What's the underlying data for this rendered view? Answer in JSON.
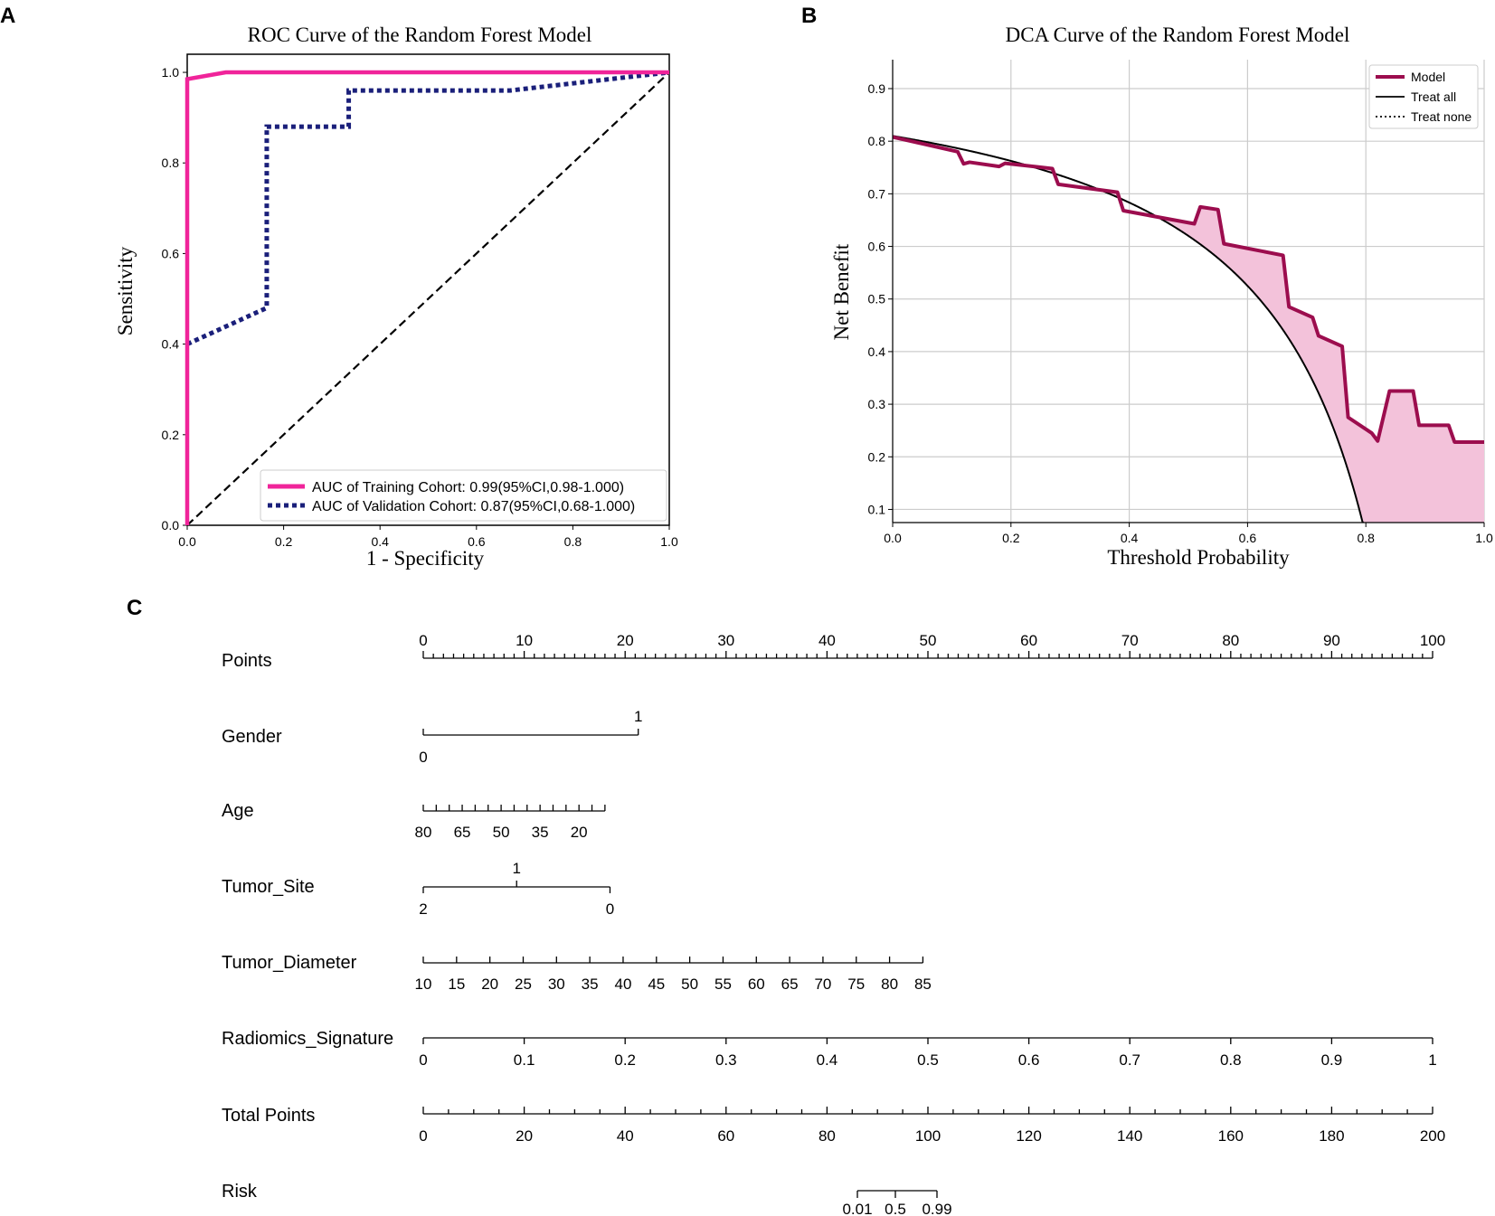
{
  "colors": {
    "train": "#f0249a",
    "valid": "#1a1f7a",
    "model": "#9c0d4e",
    "fill": "#f3c2da",
    "grid": "#cccccc"
  },
  "panel_labels": [
    "A",
    "B",
    "C"
  ],
  "chart_data": [
    {
      "id": "roc",
      "type": "line",
      "title": "ROC Curve of the Random Forest Model",
      "xlabel": "1 - Specificity",
      "ylabel": "Sensitivity",
      "xlim": [
        0,
        1
      ],
      "ylim": [
        0,
        1.04
      ],
      "xticks": [
        "0.0",
        "0.2",
        "0.4",
        "0.6",
        "0.8",
        "1.0"
      ],
      "yticks": [
        "0.0",
        "0.2",
        "0.4",
        "0.6",
        "0.8",
        "1.0"
      ],
      "grid": false,
      "legend_position": "lower-right",
      "series": [
        {
          "name": "AUC of Training Cohort: 0.99(95%CI,0.98-1.000)",
          "style": "solid",
          "x": [
            0,
            0,
            0.08,
            1.0
          ],
          "y": [
            0,
            0.985,
            1.0,
            1.0
          ]
        },
        {
          "name": "AUC of Validation Cohort: 0.87(95%CI,0.68-1.000)",
          "style": "dotted",
          "x": [
            0,
            0.165,
            0.165,
            0.335,
            0.335,
            0.67,
            1.0
          ],
          "y": [
            0.4,
            0.48,
            0.88,
            0.88,
            0.96,
            0.96,
            1.0
          ]
        },
        {
          "name": "Reference",
          "style": "dashed",
          "x": [
            0,
            1
          ],
          "y": [
            0,
            1
          ]
        }
      ]
    },
    {
      "id": "dca",
      "type": "line",
      "title": "DCA Curve of the Random Forest Model",
      "xlabel": "Threshold Probability",
      "ylabel": "Net Benefit",
      "xlim": [
        0,
        1
      ],
      "ylim": [
        0.075,
        0.955
      ],
      "xticks": [
        "0.0",
        "0.2",
        "0.4",
        "0.6",
        "0.8",
        "1.0"
      ],
      "yticks": [
        "0.1",
        "0.2",
        "0.3",
        "0.4",
        "0.5",
        "0.6",
        "0.7",
        "0.8",
        "0.9"
      ],
      "grid": true,
      "legend_position": "top-right",
      "legend": [
        "Model",
        "Treat all",
        "Treat none"
      ],
      "prevalence": 0.81,
      "model": {
        "x": [
          0,
          0.11,
          0.12,
          0.13,
          0.18,
          0.19,
          0.27,
          0.28,
          0.38,
          0.39,
          0.51,
          0.52,
          0.55,
          0.56,
          0.66,
          0.67,
          0.71,
          0.72,
          0.76,
          0.77,
          0.81,
          0.82,
          0.84,
          0.88,
          0.89,
          0.94,
          0.95,
          1.0
        ],
        "y": [
          0.808,
          0.78,
          0.757,
          0.76,
          0.752,
          0.758,
          0.748,
          0.718,
          0.703,
          0.668,
          0.643,
          0.675,
          0.67,
          0.605,
          0.583,
          0.485,
          0.465,
          0.43,
          0.41,
          0.275,
          0.245,
          0.23,
          0.325,
          0.325,
          0.26,
          0.26,
          0.228,
          0.228
        ]
      }
    }
  ],
  "nomogram": {
    "rows": [
      {
        "label": "Points",
        "axis": {
          "from": 0,
          "to": 100
        },
        "ticks_above": [
          "0",
          "10",
          "20",
          "30",
          "40",
          "50",
          "60",
          "70",
          "80",
          "90",
          "100"
        ]
      },
      {
        "label": "Gender",
        "axis": {
          "from": 0,
          "to": 21.3
        },
        "top_label": "1",
        "bottom_label": "0"
      },
      {
        "label": "Age",
        "axis": {
          "from": 0,
          "to": 18
        },
        "tick_labels": [
          "80",
          "65",
          "50",
          "35",
          "20"
        ]
      },
      {
        "label": "Tumor_Site",
        "axis": {
          "from": 0,
          "to": 18.5
        },
        "top_label": "1",
        "bottom_labels": [
          "2",
          "0"
        ]
      },
      {
        "label": "Tumor_Diameter",
        "axis": {
          "from": 0,
          "to": 49.5
        },
        "tick_labels": [
          "10",
          "15",
          "20",
          "25",
          "30",
          "35",
          "40",
          "45",
          "50",
          "55",
          "60",
          "65",
          "70",
          "75",
          "80",
          "85"
        ]
      },
      {
        "label": "Radiomics_Signature",
        "axis": {
          "from": 0,
          "to": 100
        },
        "tick_labels": [
          "0",
          "0.1",
          "0.2",
          "0.3",
          "0.4",
          "0.5",
          "0.6",
          "0.7",
          "0.8",
          "0.9",
          "1"
        ]
      },
      {
        "label": "Total Points",
        "axis": {
          "from": 0,
          "to": 200
        },
        "tick_labels": [
          "0",
          "20",
          "40",
          "60",
          "80",
          "100",
          "120",
          "140",
          "160",
          "180",
          "200"
        ]
      },
      {
        "label": "Risk",
        "axis": {
          "from": 85.5,
          "to": 102
        },
        "tick_labels": [
          "0.01",
          "0.5",
          "0.99"
        ]
      }
    ]
  }
}
